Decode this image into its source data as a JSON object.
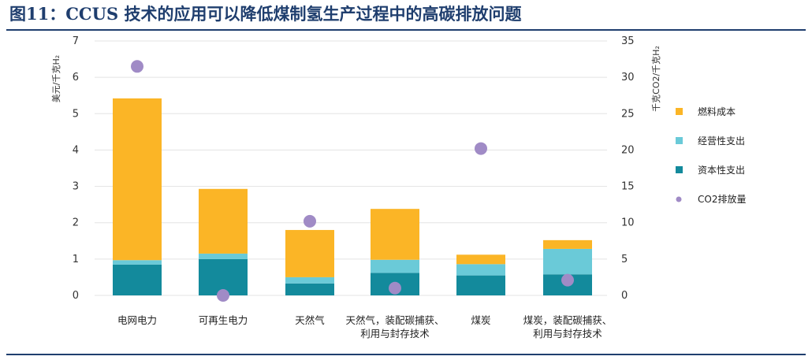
{
  "header": {
    "title": "图11：CCUS 技术的应用可以降低煤制氢生产过程中的高碳排放问题"
  },
  "chart_data": {
    "type": "bar",
    "stacked": true,
    "categories": [
      [
        "电网电力"
      ],
      [
        "可再生电力"
      ],
      [
        "天然气"
      ],
      [
        "天然气，装配碳捕获、",
        "利用与封存技术"
      ],
      [
        "煤炭"
      ],
      [
        "煤炭，装配碳捕获、",
        "利用与封存技术"
      ]
    ],
    "series": [
      {
        "name": "资本性支出",
        "color": "#138a9c",
        "values": [
          0.85,
          1.0,
          0.33,
          0.62,
          0.55,
          0.58
        ]
      },
      {
        "name": "经营性支出",
        "color": "#6acad8",
        "values": [
          0.12,
          0.15,
          0.17,
          0.36,
          0.31,
          0.7
        ]
      },
      {
        "name": "燃料成本",
        "color": "#fbb526",
        "values": [
          4.45,
          1.78,
          1.3,
          1.4,
          0.26,
          0.24
        ]
      }
    ],
    "scatter_series": {
      "name": "CO2排放量",
      "color": "#a08bc6",
      "axis": "right",
      "values": [
        31.5,
        0,
        10.2,
        1,
        20.2,
        2.1
      ]
    },
    "ylabel_left": "美元/千克H₂",
    "ylabel_right": "千克CO2/千克H₂",
    "ylim_left": [
      0,
      7
    ],
    "ylim_right": [
      0,
      35
    ],
    "yticks_left": [
      "0",
      "1",
      "2",
      "3",
      "4",
      "5",
      "6",
      "7"
    ],
    "yticks_right": [
      "0",
      "5",
      "10",
      "15",
      "20",
      "25",
      "30",
      "35"
    ],
    "grid": true,
    "legend_position": "right",
    "legend": [
      "燃料成本",
      "经营性支出",
      "资本性支出",
      "CO2排放量"
    ]
  }
}
